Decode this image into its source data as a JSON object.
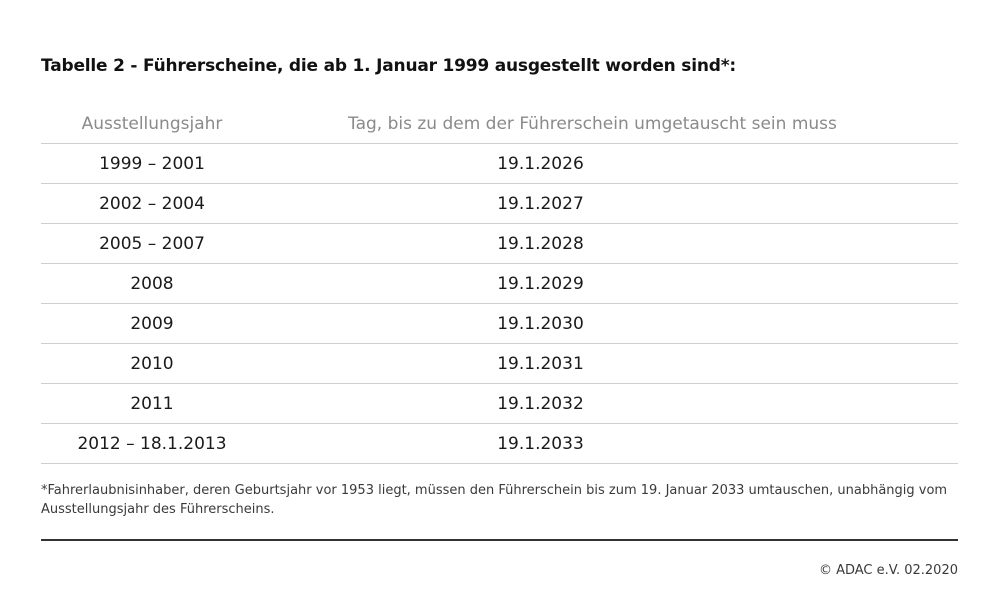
{
  "title": "Tabelle 2 - Führerscheine, die ab 1. Januar 1999 ausgestellt worden sind*:",
  "table": {
    "headers": [
      "Ausstellungsjahr",
      "Tag, bis zu dem der Führerschein umgetauscht sein muss"
    ],
    "rows": [
      [
        "1999 – 2001",
        "19.1.2026"
      ],
      [
        "2002 – 2004",
        "19.1.2027"
      ],
      [
        "2005 – 2007",
        "19.1.2028"
      ],
      [
        "2008",
        "19.1.2029"
      ],
      [
        "2009",
        "19.1.2030"
      ],
      [
        "2010",
        "19.1.2031"
      ],
      [
        "2011",
        "19.1.2032"
      ],
      [
        "2012 – 18.1.2013",
        "19.1.2033"
      ]
    ]
  },
  "footnote": "*Fahrerlaubnisinhaber, deren Geburtsjahr vor 1953 liegt, müssen den Führerschein bis zum 19. Januar 2033 umtauschen, unabhängig vom Ausstellungsjahr des Führerscheins.",
  "copyright": "© ADAC e.V. 02.2020"
}
